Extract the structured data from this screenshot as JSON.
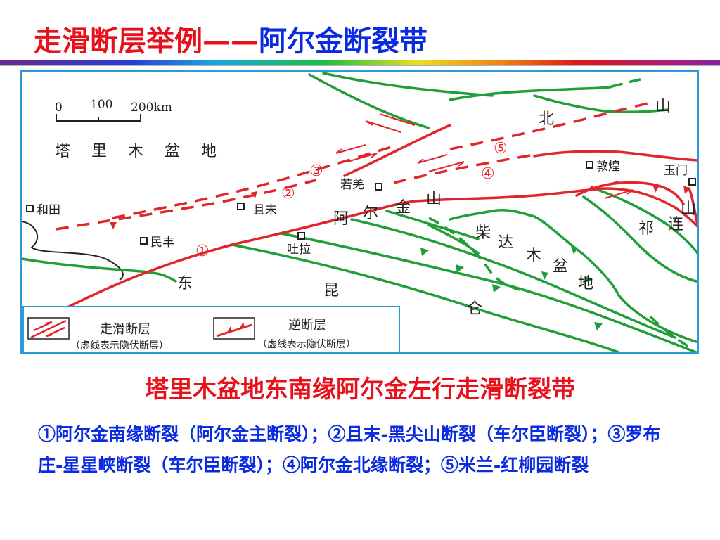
{
  "title": {
    "part1": "走滑断层举例——",
    "part2": "阿尔金断裂带"
  },
  "colors": {
    "red": "#e8101a",
    "blue": "#0a2be0",
    "fault_red": "#e0262c",
    "fault_green": "#1f9e3a",
    "frame": "#2a9ad8"
  },
  "scale": {
    "t0": "0",
    "t100": "100",
    "t200": "200km"
  },
  "places": {
    "tarim": [
      "塔",
      "里",
      "木",
      "盆",
      "地"
    ],
    "hetian": "和田",
    "minfeng": "民丰",
    "qiemo": "且末",
    "ruoqiang": "若羌",
    "tula": "吐拉",
    "dunhuang": "敦煌",
    "yumen": "玉门",
    "altun": [
      "阿",
      "尔",
      "金",
      "山"
    ],
    "qaidam": [
      "柴",
      "达",
      "木",
      "盆",
      "地"
    ],
    "kunlun": [
      "东",
      "昆",
      "仑"
    ],
    "qilian": [
      "祁",
      "连",
      "山"
    ],
    "beishan": [
      "北",
      "山"
    ]
  },
  "markers": [
    "①",
    "②",
    "③",
    "④",
    "⑤"
  ],
  "legend": {
    "strike_slip": "走滑断层",
    "strike_slip_note": "（虚线表示隐伏断层）",
    "thrust": "逆断层",
    "thrust_note": "（虚线表示隐伏断层）"
  },
  "subtitle": "塔里木盆地东南缘阿尔金左行走滑断裂带",
  "notes": "①阿尔金南缘断裂（阿尔金主断裂）；②且末-黑尖山断裂（车尔臣断裂）；③罗布庄-星星峡断裂（车尔臣断裂）；④阿尔金北缘断裂；⑤米兰-红柳园断裂"
}
